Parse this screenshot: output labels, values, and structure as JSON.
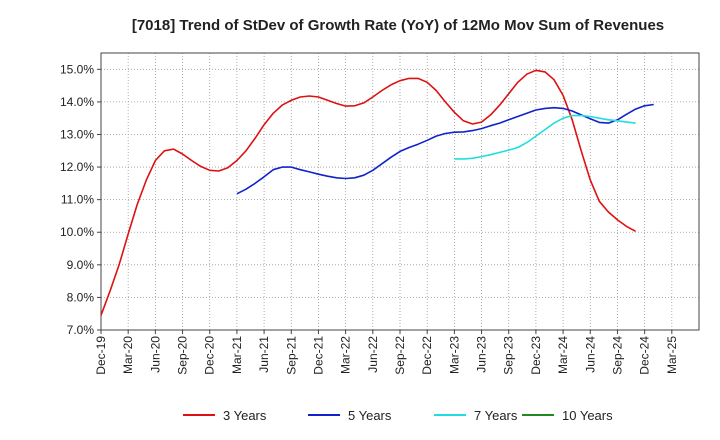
{
  "chart_data": {
    "type": "line",
    "title": "[7018]  Trend of StDev of Growth Rate (YoY) of 12Mo Mov Sum of Revenues",
    "xlabel": "",
    "ylabel": "",
    "ylim": [
      7.0,
      15.5
    ],
    "yticks": [
      7.0,
      8.0,
      9.0,
      10.0,
      11.0,
      12.0,
      13.0,
      14.0,
      15.0
    ],
    "ytick_labels": [
      "7.0%",
      "8.0%",
      "9.0%",
      "10.0%",
      "11.0%",
      "12.0%",
      "13.0%",
      "14.0%",
      "15.0%"
    ],
    "xtick_labels": [
      "Dec-19",
      "Mar-20",
      "Jun-20",
      "Sep-20",
      "Dec-20",
      "Mar-21",
      "Jun-21",
      "Sep-21",
      "Dec-21",
      "Mar-22",
      "Jun-22",
      "Sep-22",
      "Dec-22",
      "Mar-23",
      "Jun-23",
      "Sep-23",
      "Dec-23",
      "Mar-24",
      "Jun-24",
      "Sep-24",
      "Dec-24",
      "Mar-25"
    ],
    "grid": true,
    "legend_position": "bottom",
    "series": [
      {
        "name": "3 Years",
        "color": "#dd1111",
        "start_month": 0,
        "values": [
          7.45,
          8.2,
          9.0,
          9.95,
          10.85,
          11.6,
          12.2,
          12.5,
          12.55,
          12.4,
          12.2,
          12.02,
          11.9,
          11.88,
          11.98,
          12.2,
          12.5,
          12.88,
          13.3,
          13.65,
          13.9,
          14.05,
          14.15,
          14.18,
          14.15,
          14.05,
          13.95,
          13.87,
          13.88,
          13.97,
          14.15,
          14.35,
          14.52,
          14.65,
          14.72,
          14.72,
          14.6,
          14.35,
          14.0,
          13.68,
          13.42,
          13.32,
          13.38,
          13.6,
          13.9,
          14.25,
          14.6,
          14.85,
          14.97,
          14.92,
          14.68,
          14.2,
          13.45,
          12.5,
          11.6,
          10.95,
          10.62,
          10.38,
          10.18,
          10.03
        ]
      },
      {
        "name": "5 Years",
        "color": "#1122cc",
        "start_month": 15,
        "values": [
          11.18,
          11.32,
          11.5,
          11.7,
          11.92,
          12.0,
          12.0,
          11.92,
          11.85,
          11.78,
          11.72,
          11.67,
          11.65,
          11.67,
          11.75,
          11.9,
          12.1,
          12.3,
          12.48,
          12.6,
          12.7,
          12.82,
          12.95,
          13.03,
          13.07,
          13.08,
          13.12,
          13.18,
          13.27,
          13.35,
          13.45,
          13.55,
          13.65,
          13.75,
          13.8,
          13.82,
          13.8,
          13.72,
          13.6,
          13.48,
          13.37,
          13.35,
          13.45,
          13.62,
          13.78,
          13.88,
          13.92
        ]
      },
      {
        "name": "7 Years",
        "color": "#22dddd",
        "start_month": 39,
        "values": [
          12.25,
          12.25,
          12.27,
          12.32,
          12.38,
          12.45,
          12.52,
          12.6,
          12.75,
          12.95,
          13.15,
          13.35,
          13.5,
          13.58,
          13.58,
          13.55,
          13.5,
          13.45,
          13.42,
          13.38,
          13.35
        ]
      },
      {
        "name": "10 Years",
        "color": "#228822",
        "start_month": 0,
        "values": []
      }
    ]
  }
}
